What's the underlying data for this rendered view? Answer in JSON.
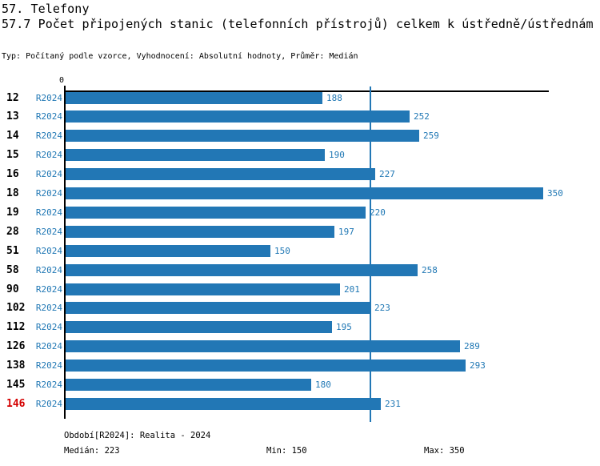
{
  "header": {
    "title": "57. Telefony",
    "subtitle": "57.7 Počet připojených stanic (telefonních přístrojů) celkem k ústředně/ústřednám",
    "meta": "Typ: Počítaný podle vzorce, Vyhodnocení: Absolutní hodnoty, Průměr: Medián"
  },
  "chart_data": {
    "type": "bar",
    "orientation": "horizontal",
    "title": "57.7 Počet připojených stanic (telefonních přístrojů) celkem k ústředně/ústřednám",
    "categories": [
      "12",
      "13",
      "14",
      "15",
      "16",
      "18",
      "19",
      "28",
      "51",
      "58",
      "90",
      "102",
      "112",
      "126",
      "138",
      "145",
      "146"
    ],
    "series": [
      {
        "name": "R2024",
        "values": [
          188,
          252,
          259,
          190,
          227,
          350,
          220,
          197,
          150,
          258,
          201,
          223,
          195,
          289,
          293,
          180,
          231
        ]
      }
    ],
    "xlim": [
      0,
      353
    ],
    "zero_tick_label": "0",
    "grid": false,
    "legend_position": "none",
    "median_value": 223,
    "min_value": 150,
    "max_value": 350,
    "highlight_category": "146",
    "colors": {
      "bar": "#2277b5",
      "blue_label": "#1f77b4",
      "highlight": "#d40000",
      "axis": "#000000",
      "median_line": "#2277b5"
    }
  },
  "footer": {
    "period_info": "Období[R2024]: Realita - 2024",
    "median": "Medián: 223",
    "min": "Min: 150",
    "max": "Max: 350"
  }
}
